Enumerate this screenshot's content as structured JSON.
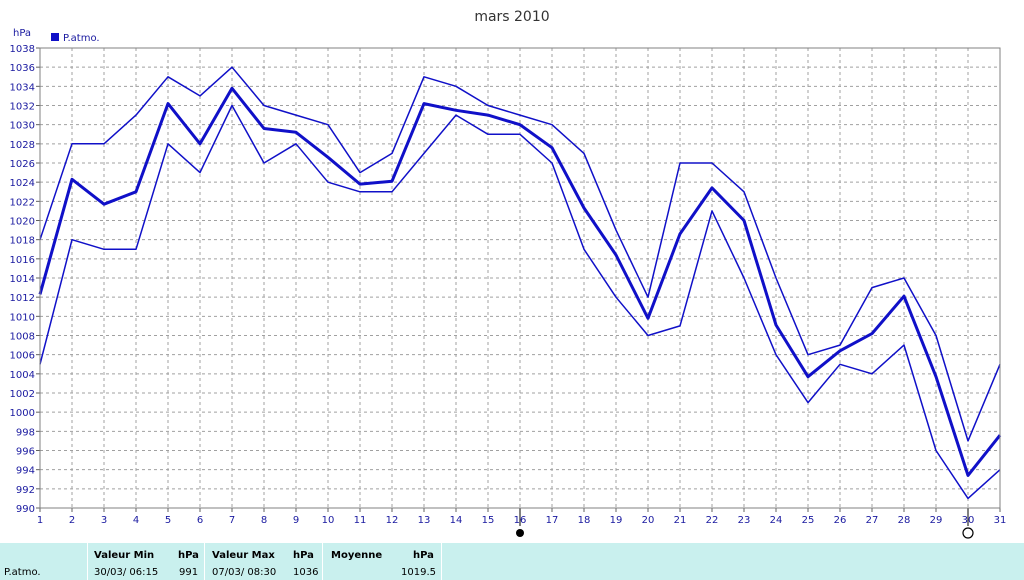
{
  "chart_data": {
    "type": "line",
    "title": "mars 2010",
    "ylabel": "hPa",
    "ylim": [
      990,
      1038
    ],
    "ytick_step": 2,
    "x": [
      1,
      2,
      3,
      4,
      5,
      6,
      7,
      8,
      9,
      10,
      11,
      12,
      13,
      14,
      15,
      16,
      17,
      18,
      19,
      20,
      21,
      22,
      23,
      24,
      25,
      26,
      27,
      28,
      29,
      30,
      31
    ],
    "legend": {
      "position": "top-left",
      "entries": [
        "P.atmo."
      ]
    },
    "grid": true,
    "series": [
      {
        "name": "P.atmo.",
        "role": "moyenne",
        "values": [
          1012.3,
          1024.3,
          1021.7,
          1023.0,
          1032.2,
          1028.0,
          1033.8,
          1029.6,
          1029.2,
          1026.6,
          1023.8,
          1024.1,
          1032.2,
          1031.5,
          1031.0,
          1030.0,
          1027.6,
          1021.3,
          1016.4,
          1009.8,
          1018.6,
          1023.4,
          1020.0,
          1009.1,
          1003.7,
          1006.4,
          1008.2,
          1012.1,
          1003.7,
          993.4,
          997.6
        ]
      },
      {
        "role": "maximum",
        "values": [
          1018,
          1028,
          1028,
          1031,
          1035,
          1033,
          1036,
          1032,
          1031,
          1030,
          1025,
          1027,
          1035,
          1034,
          1032,
          1031,
          1030,
          1027,
          1019,
          1012,
          1026,
          1026,
          1023,
          1014,
          1006,
          1007,
          1013,
          1014,
          1008,
          997,
          1005
        ]
      },
      {
        "role": "minimum",
        "values": [
          1005,
          1018,
          1017,
          1017,
          1028,
          1025,
          1032,
          1026,
          1028,
          1024,
          1023,
          1023,
          1027,
          1031,
          1029,
          1029,
          1026,
          1017,
          1012,
          1008,
          1009,
          1021,
          1014,
          1006,
          1001,
          1005,
          1004,
          1007,
          996,
          991,
          994
        ]
      }
    ],
    "markers": [
      {
        "x": 16,
        "symbol": "filled-circle"
      },
      {
        "x": 30,
        "symbol": "open-circle"
      }
    ],
    "colors": {
      "series": "#1010c8",
      "grid": "#a0a0a0",
      "text": "#1a1aa0",
      "panel": "#c9f0ee"
    }
  },
  "stats": {
    "row_label": "P.atmo.",
    "min": {
      "label": "Valeur Min",
      "unit": "hPa",
      "datetime": "30/03/  06:15",
      "value": "991"
    },
    "max": {
      "label": "Valeur Max",
      "unit": "hPa",
      "datetime": "07/03/  08:30",
      "value": "1036"
    },
    "mean": {
      "label": "Moyenne",
      "unit": "hPa",
      "value": "1019.5"
    }
  }
}
